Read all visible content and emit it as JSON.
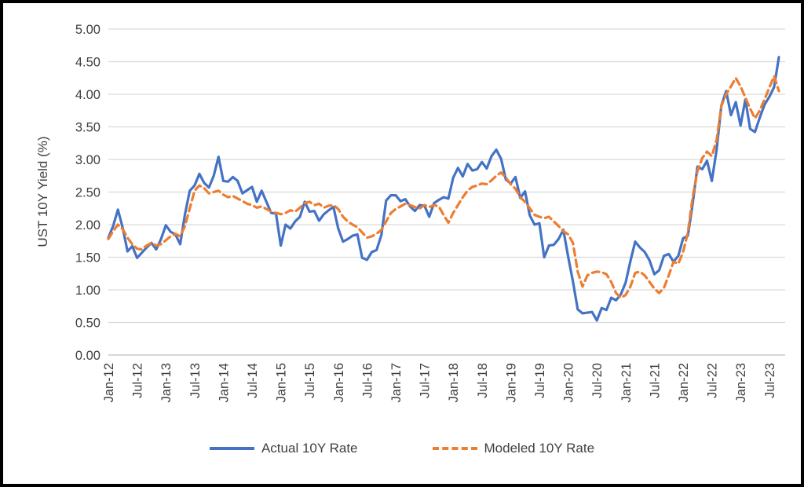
{
  "chart_data": {
    "type": "line",
    "title": "",
    "xlabel": "",
    "ylabel": "UST 10Y Yield (%)",
    "ylim": [
      0,
      5
    ],
    "ytick_step": 0.5,
    "ytick_decimals": 2,
    "grid": true,
    "legend_position": "bottom",
    "x_frequency": "monthly",
    "x_range": "Jan-2012 to Sep-2023",
    "x_label_every_months": 6,
    "x_labels": [
      "Jan-12",
      "Jul-12",
      "Jan-13",
      "Jul-13",
      "Jan-14",
      "Jul-14",
      "Jan-15",
      "Jul-15",
      "Jan-16",
      "Jul-16",
      "Jan-17",
      "Jul-17",
      "Jan-18",
      "Jul-18",
      "Jan-19",
      "Jul-19",
      "Jan-20",
      "Jul-20",
      "Jan-21",
      "Jul-21",
      "Jan-22",
      "Jul-22",
      "Jan-23",
      "Jul-23"
    ],
    "series": [
      {
        "name": "Actual 10Y Rate",
        "color": "#4472C4",
        "style": "solid",
        "values": [
          1.8,
          1.98,
          2.23,
          1.95,
          1.59,
          1.67,
          1.49,
          1.57,
          1.65,
          1.72,
          1.62,
          1.78,
          1.99,
          1.89,
          1.85,
          1.7,
          2.16,
          2.52,
          2.6,
          2.78,
          2.64,
          2.57,
          2.75,
          3.04,
          2.67,
          2.66,
          2.73,
          2.67,
          2.48,
          2.53,
          2.58,
          2.35,
          2.52,
          2.35,
          2.18,
          2.17,
          1.68,
          2.0,
          1.94,
          2.05,
          2.12,
          2.35,
          2.2,
          2.21,
          2.06,
          2.16,
          2.22,
          2.27,
          1.94,
          1.74,
          1.78,
          1.83,
          1.85,
          1.49,
          1.46,
          1.58,
          1.61,
          1.84,
          2.37,
          2.45,
          2.45,
          2.36,
          2.39,
          2.28,
          2.21,
          2.3,
          2.29,
          2.12,
          2.33,
          2.38,
          2.42,
          2.4,
          2.72,
          2.87,
          2.74,
          2.93,
          2.83,
          2.85,
          2.96,
          2.86,
          3.05,
          3.15,
          3.01,
          2.69,
          2.63,
          2.73,
          2.41,
          2.51,
          2.14,
          2.0,
          2.02,
          1.5,
          1.68,
          1.69,
          1.78,
          1.92,
          1.51,
          1.13,
          0.7,
          0.64,
          0.65,
          0.66,
          0.53,
          0.72,
          0.69,
          0.88,
          0.84,
          0.93,
          1.11,
          1.44,
          1.74,
          1.65,
          1.58,
          1.45,
          1.24,
          1.3,
          1.52,
          1.55,
          1.43,
          1.52,
          1.79,
          1.83,
          2.32,
          2.89,
          2.85,
          2.98,
          2.67,
          3.15,
          3.83,
          4.05,
          3.68,
          3.88,
          3.52,
          3.92,
          3.47,
          3.42,
          3.64,
          3.84,
          3.96,
          4.11,
          4.57
        ]
      },
      {
        "name": "Modeled 10Y Rate",
        "color": "#ED7D31",
        "style": "dashed",
        "values": [
          1.78,
          1.9,
          2.0,
          1.93,
          1.8,
          1.7,
          1.63,
          1.62,
          1.68,
          1.72,
          1.68,
          1.7,
          1.76,
          1.82,
          1.86,
          1.82,
          1.98,
          2.25,
          2.52,
          2.6,
          2.56,
          2.48,
          2.5,
          2.52,
          2.46,
          2.42,
          2.44,
          2.4,
          2.36,
          2.32,
          2.3,
          2.26,
          2.28,
          2.24,
          2.2,
          2.18,
          2.16,
          2.18,
          2.22,
          2.2,
          2.26,
          2.33,
          2.35,
          2.3,
          2.32,
          2.26,
          2.29,
          2.3,
          2.24,
          2.12,
          2.05,
          2.0,
          1.96,
          1.88,
          1.8,
          1.82,
          1.86,
          1.92,
          2.05,
          2.18,
          2.24,
          2.28,
          2.32,
          2.3,
          2.27,
          2.25,
          2.3,
          2.27,
          2.3,
          2.28,
          2.15,
          2.03,
          2.18,
          2.3,
          2.42,
          2.52,
          2.58,
          2.6,
          2.63,
          2.62,
          2.68,
          2.75,
          2.8,
          2.72,
          2.62,
          2.55,
          2.42,
          2.35,
          2.25,
          2.15,
          2.12,
          2.1,
          2.12,
          2.05,
          1.98,
          1.9,
          1.85,
          1.72,
          1.28,
          1.05,
          1.22,
          1.26,
          1.28,
          1.27,
          1.24,
          1.12,
          0.95,
          0.88,
          0.92,
          1.05,
          1.26,
          1.28,
          1.22,
          1.12,
          1.02,
          0.95,
          1.03,
          1.22,
          1.43,
          1.4,
          1.58,
          1.88,
          2.42,
          2.82,
          3.02,
          3.12,
          3.05,
          3.3,
          3.82,
          4.0,
          4.12,
          4.25,
          4.12,
          3.95,
          3.78,
          3.63,
          3.75,
          3.92,
          4.1,
          4.28,
          4.05
        ]
      }
    ],
    "colors": {
      "actual_line": "#4472C4",
      "modeled_line": "#ED7D31",
      "gridline": "#D9D9D9",
      "axis_line": "#BFBFBF",
      "label_text": "#404040",
      "frame_border": "#000000"
    }
  }
}
